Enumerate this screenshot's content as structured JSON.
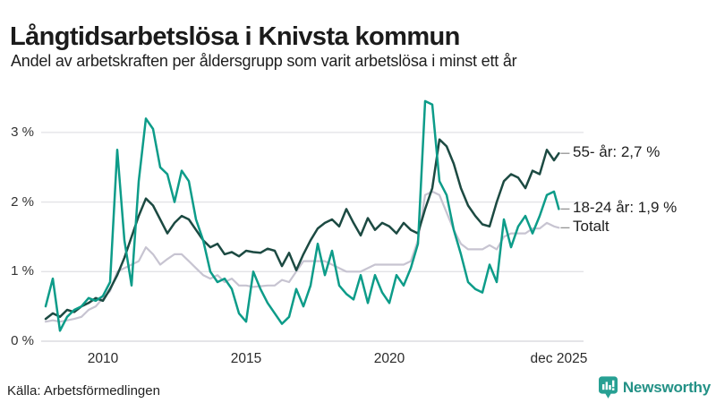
{
  "header": {
    "title": "Långtidsarbetslösa i Knivsta kommun",
    "subtitle": "Andel av arbetskraften per åldersgrupp som varit arbetslösa i minst ett år"
  },
  "footer": {
    "source": "Källa: Arbetsförmedlingen",
    "brand": "Newsworthy",
    "brand_color": "#239186",
    "brand_icon": "bar-chart-speech-bubble-icon",
    "brand_icon_color": "#27a093"
  },
  "chart_data": {
    "type": "line",
    "title": "Långtidsarbetslösa i Knivsta kommun",
    "subtitle": "Andel av arbetskraften per åldersgrupp som varit arbetslösa i minst ett år",
    "xlabel": "",
    "ylabel": "",
    "ylim": [
      0,
      3.5
    ],
    "grid": "horizontal",
    "grid_color": "#e2e2e6",
    "zero_line_color": "#d5d5da",
    "legend_position": "right-end-labels",
    "yticks": [
      {
        "value": 0,
        "label": "0 %"
      },
      {
        "value": 1,
        "label": "1 %"
      },
      {
        "value": 2,
        "label": "2 %"
      },
      {
        "value": 3,
        "label": "3 %"
      }
    ],
    "xticks": [
      {
        "value": 2010,
        "label": "2010"
      },
      {
        "value": 2015,
        "label": "2015"
      },
      {
        "value": 2020,
        "label": "2020"
      },
      {
        "value": 2025.92,
        "label": "dec 2025"
      }
    ],
    "x": [
      2008,
      2008.25,
      2008.5,
      2008.75,
      2009,
      2009.25,
      2009.5,
      2009.75,
      2010,
      2010.25,
      2010.5,
      2010.75,
      2011,
      2011.25,
      2011.5,
      2011.75,
      2012,
      2012.25,
      2012.5,
      2012.75,
      2013,
      2013.25,
      2013.5,
      2013.75,
      2014,
      2014.25,
      2014.5,
      2014.75,
      2015,
      2015.25,
      2015.5,
      2015.75,
      2016,
      2016.25,
      2016.5,
      2016.75,
      2017,
      2017.25,
      2017.5,
      2017.75,
      2018,
      2018.25,
      2018.5,
      2018.75,
      2019,
      2019.25,
      2019.5,
      2019.75,
      2020,
      2020.25,
      2020.5,
      2020.75,
      2021,
      2021.25,
      2021.5,
      2021.75,
      2022,
      2022.25,
      2022.5,
      2022.75,
      2023,
      2023.25,
      2023.5,
      2023.75,
      2024,
      2024.25,
      2024.5,
      2024.75,
      2025,
      2025.25,
      2025.5,
      2025.75,
      2025.92
    ],
    "series": [
      {
        "name": "55- år",
        "end_label": "55- år: 2,7 %",
        "end_value": "2,7 %",
        "color": "#1c4a42",
        "width": 2.5,
        "values": [
          0.32,
          0.4,
          0.35,
          0.45,
          0.42,
          0.5,
          0.55,
          0.62,
          0.58,
          0.75,
          0.95,
          1.2,
          1.5,
          1.8,
          2.05,
          1.95,
          1.75,
          1.55,
          1.7,
          1.8,
          1.75,
          1.6,
          1.45,
          1.35,
          1.4,
          1.25,
          1.28,
          1.22,
          1.3,
          1.28,
          1.27,
          1.33,
          1.3,
          1.08,
          1.27,
          1.02,
          1.25,
          1.45,
          1.62,
          1.7,
          1.75,
          1.65,
          1.9,
          1.7,
          1.52,
          1.77,
          1.6,
          1.7,
          1.65,
          1.55,
          1.7,
          1.6,
          1.55,
          1.9,
          2.2,
          2.9,
          2.8,
          2.55,
          2.2,
          1.95,
          1.8,
          1.68,
          1.65,
          2.0,
          2.3,
          2.4,
          2.35,
          2.2,
          2.45,
          2.4,
          2.75,
          2.6,
          2.7
        ]
      },
      {
        "name": "18-24 år",
        "end_label": "18-24 år: 1,9 %",
        "end_value": "1,9 %",
        "color": "#0d9c89",
        "width": 2.5,
        "values": [
          0.5,
          0.9,
          0.15,
          0.35,
          0.45,
          0.5,
          0.62,
          0.58,
          0.65,
          0.85,
          2.75,
          1.45,
          0.8,
          2.3,
          3.2,
          3.05,
          2.5,
          2.4,
          2.0,
          2.45,
          2.3,
          1.75,
          1.45,
          1.0,
          0.85,
          0.9,
          0.75,
          0.4,
          0.28,
          1.0,
          0.75,
          0.55,
          0.4,
          0.25,
          0.35,
          0.75,
          0.5,
          0.8,
          1.4,
          0.95,
          1.3,
          0.8,
          0.68,
          0.6,
          0.95,
          0.55,
          0.95,
          0.7,
          0.55,
          0.95,
          0.8,
          1.05,
          1.4,
          3.45,
          3.4,
          2.3,
          2.1,
          1.6,
          1.25,
          0.85,
          0.75,
          0.7,
          1.1,
          0.85,
          1.75,
          1.35,
          1.65,
          1.8,
          1.55,
          1.8,
          2.1,
          2.15,
          1.9
        ]
      },
      {
        "name": "Totalt",
        "end_label": "Totalt",
        "end_value": "1,6 %",
        "color": "#c7c4d1",
        "width": 2.2,
        "values": [
          0.28,
          0.3,
          0.28,
          0.3,
          0.32,
          0.35,
          0.45,
          0.5,
          0.62,
          0.72,
          1.0,
          1.05,
          1.1,
          1.15,
          1.35,
          1.25,
          1.1,
          1.18,
          1.25,
          1.25,
          1.15,
          1.05,
          0.95,
          0.9,
          0.95,
          0.85,
          0.9,
          0.8,
          0.8,
          0.78,
          0.79,
          0.8,
          0.8,
          0.88,
          0.85,
          1.0,
          1.15,
          1.15,
          1.15,
          1.15,
          1.1,
          1.05,
          1.0,
          1.0,
          1.0,
          1.05,
          1.1,
          1.1,
          1.1,
          1.1,
          1.1,
          1.15,
          1.45,
          2.1,
          2.15,
          2.1,
          1.85,
          1.6,
          1.4,
          1.32,
          1.32,
          1.32,
          1.38,
          1.32,
          1.5,
          1.55,
          1.55,
          1.55,
          1.62,
          1.62,
          1.7,
          1.65,
          1.63
        ]
      }
    ]
  }
}
